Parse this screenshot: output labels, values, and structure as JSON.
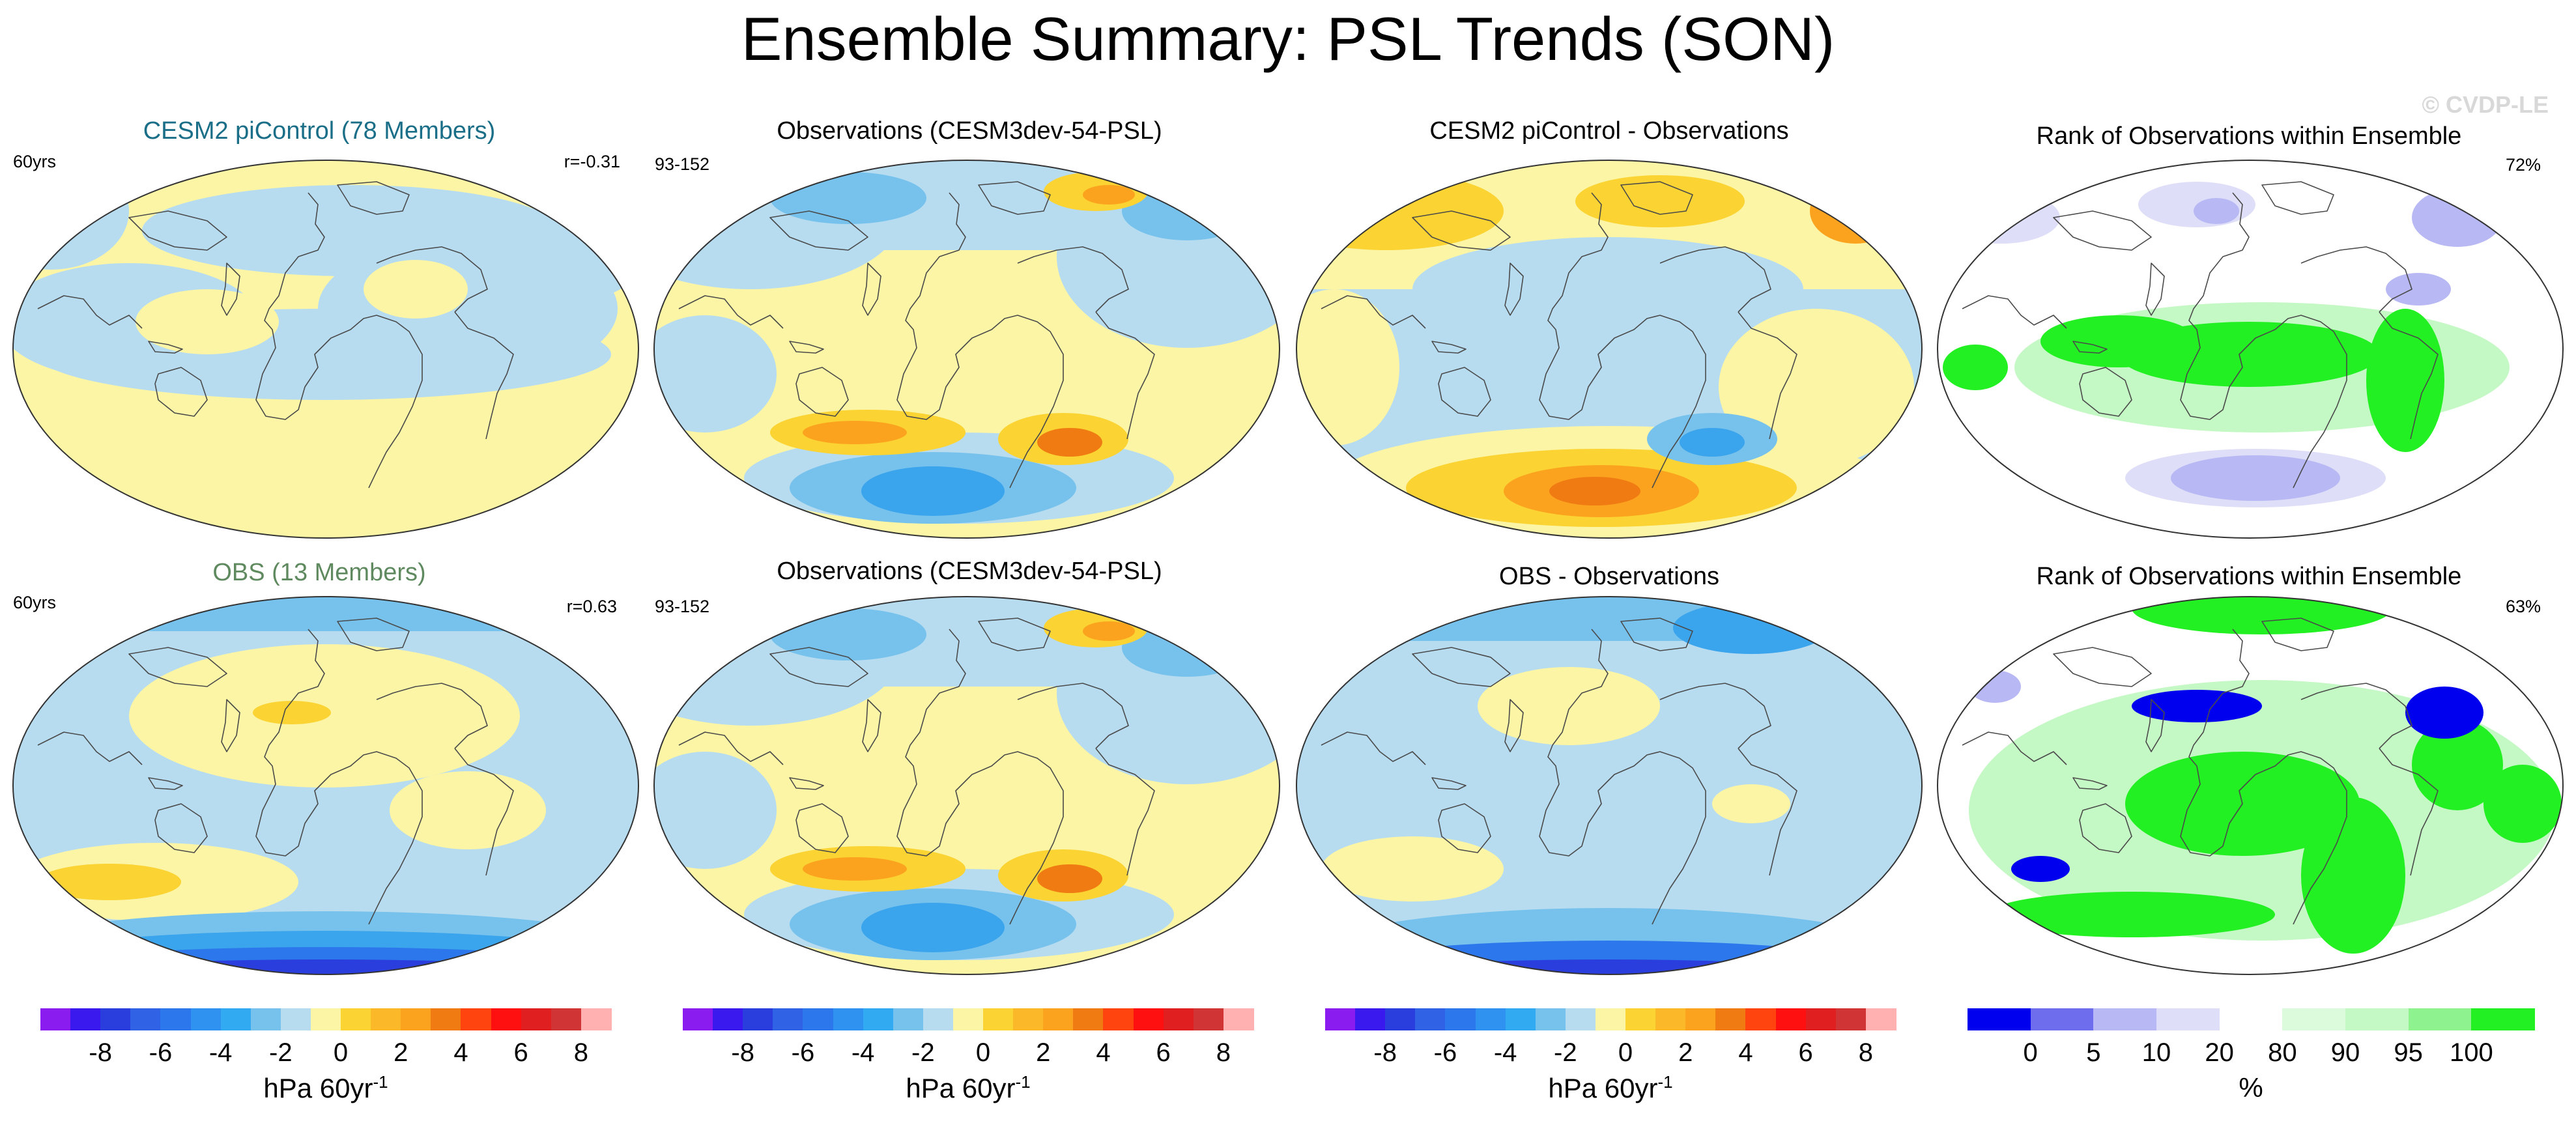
{
  "title": "Ensemble Summary: PSL Trends (SON)",
  "watermark": "© CVDP-LE",
  "colors": {
    "blue_light": "#b7dcf0",
    "blue_mid": "#77c2ec",
    "blue_med": "#3aa4ec",
    "blue_dark": "#2d77ec",
    "blue_deep": "#2a3ddd",
    "yellow_light": "#fbf5a5",
    "yellow_mid": "#fbd332",
    "orange": "#fba31e",
    "orange_dark": "#f07b12",
    "rank_green": "#22f022",
    "rank_green_light": "#c4f8c4",
    "rank_blue": "#0000ee",
    "rank_blue_light": "#b8b8f4",
    "title_teal": "#1a6e87",
    "title_green": "#5f8a5f"
  },
  "panels": [
    {
      "title": "CESM2 piControl (78 Members)",
      "left": "60yrs",
      "right": "r=-0.31",
      "kind": "model1"
    },
    {
      "title": "Observations (CESM3dev-54-PSL)",
      "left": "93-152",
      "right": "",
      "kind": "obs"
    },
    {
      "title": "CESM2 piControl - Observations",
      "left": "",
      "right": "",
      "kind": "diff1"
    },
    {
      "title": "Rank of Observations within Ensemble",
      "left": "",
      "right": "72%",
      "kind": "rank1"
    },
    {
      "title": "OBS (13 Members)",
      "left": "60yrs",
      "right": "r=0.63",
      "kind": "model2"
    },
    {
      "title": "Observations (CESM3dev-54-PSL)",
      "left": "93-152",
      "right": "",
      "kind": "obs"
    },
    {
      "title": "OBS - Observations",
      "left": "",
      "right": "",
      "kind": "diff2"
    },
    {
      "title": "Rank of Observations within Ensemble",
      "left": "",
      "right": "63%",
      "kind": "rank2"
    }
  ],
  "chart_data": [
    {
      "type": "heatmap",
      "name": "trend colorbar",
      "levels": [
        -9,
        -8,
        -7,
        -6,
        -5,
        -4,
        -3,
        -2,
        -1,
        0,
        1,
        2,
        3,
        4,
        5,
        6,
        7,
        8,
        9
      ],
      "tick_labels": [
        "-8",
        "-6",
        "-4",
        "-2",
        "0",
        "2",
        "4",
        "6",
        "8"
      ],
      "tick_values": [
        -8,
        -6,
        -4,
        -2,
        0,
        2,
        4,
        6,
        8
      ],
      "unit": "hPa 60yr",
      "unit_exp": "-1",
      "colors": [
        "#8a1cf0",
        "#3a19ee",
        "#2a3ddd",
        "#2f62e4",
        "#2d77ec",
        "#2f92f0",
        "#32aaf2",
        "#77c2ec",
        "#b7dcf0",
        "#fbf5a5",
        "#fbd332",
        "#fbb828",
        "#fba31e",
        "#f07b12",
        "#ff4410",
        "#ff1010",
        "#e02020",
        "#d03434",
        "#ffb0b0"
      ]
    },
    {
      "type": "heatmap",
      "name": "rank colorbar",
      "boundaries": [
        0,
        5,
        10,
        20,
        80,
        90,
        95,
        100
      ],
      "tick_labels": [
        "0",
        "5",
        "10",
        "20",
        "80",
        "90",
        "95",
        "100"
      ],
      "unit": "%",
      "colors": [
        "#0000ee",
        "#6d6dee",
        "#b8b8f4",
        "#dedef8",
        "#ffffff",
        "#dcfadc",
        "#c4f8c4",
        "#8ef28e",
        "#22f022"
      ]
    }
  ]
}
